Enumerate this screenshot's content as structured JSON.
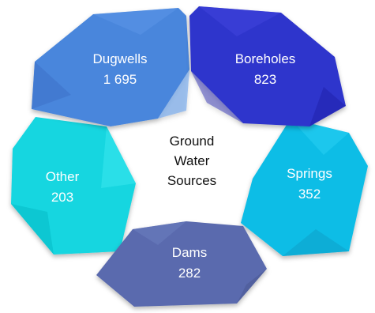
{
  "diagram": {
    "center": {
      "lines": [
        "Ground",
        "Water",
        "Sources"
      ]
    },
    "segments": [
      {
        "id": "dugwells",
        "label": "Dugwells",
        "value": "1 695",
        "color": "#4a86dc",
        "dark": "#3a6cc4",
        "light": "#5f9aea"
      },
      {
        "id": "boreholes",
        "label": "Boreholes",
        "value": "823",
        "color": "#2e34cc",
        "dark": "#1f22a8",
        "light": "#4448dd"
      },
      {
        "id": "springs",
        "label": "Springs",
        "value": "352",
        "color": "#0dbde6",
        "dark": "#0898c4",
        "light": "#2cd0f2"
      },
      {
        "id": "dams",
        "label": "Dams",
        "value": "282",
        "color": "#5a6aae",
        "dark": "#47558f",
        "light": "#6e7dc0"
      },
      {
        "id": "other",
        "label": "Other",
        "value": "203",
        "color": "#13d6e0",
        "dark": "#0fb5c0",
        "light": "#3ee8ee"
      }
    ]
  }
}
